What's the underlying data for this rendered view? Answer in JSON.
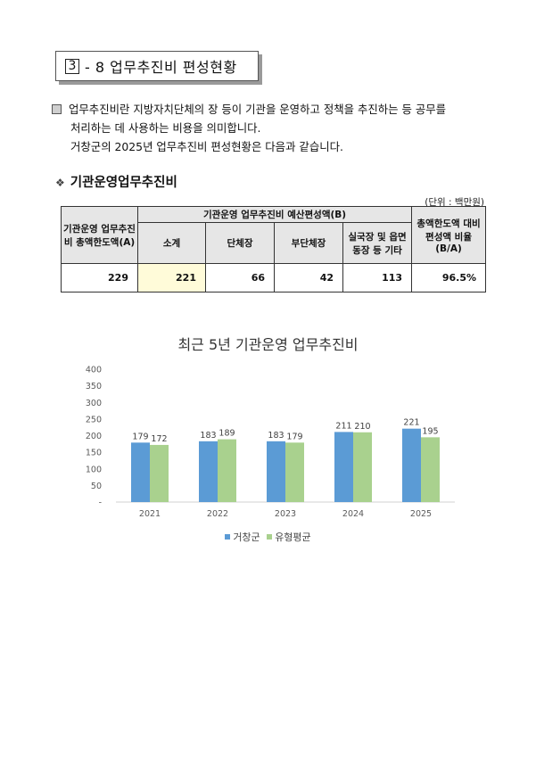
{
  "section": {
    "number": "3",
    "title": "- 8  업무추진비 편성현황"
  },
  "intro": {
    "line1": "업무추진비란 지방자치단체의 장 등이 기관을 운영하고 정책을 추진하는 등 공무를",
    "line2": "처리하는 데 사용하는 비용을 의미합니다.",
    "line3": "거창군의 2025년 업무추진비 편성현황은 다음과 같습니다."
  },
  "subheading": {
    "bullet": "❖",
    "text": "기관운영업무추진비"
  },
  "unit": "(단위 : 백만원)",
  "table": {
    "col_limit": "기관운영 업무추진비 총액한도액(A)",
    "col_group": "기관운영 업무추진비 예산편성액(B)",
    "col_sub": "소계",
    "col_dept": "단체장",
    "col_vice": "부단체장",
    "col_other": "실국장 및 읍면동장 등 기타",
    "col_ratio": "총액한도액 대비 편성액 비율(B/A)",
    "row": {
      "limit": "229",
      "sub": "221",
      "dept": "66",
      "vice": "42",
      "other": "113",
      "ratio": "96.5%"
    }
  },
  "chart_data": {
    "type": "bar",
    "title": "최근 5년 기관운영 업무추진비",
    "categories": [
      "2021",
      "2022",
      "2023",
      "2024",
      "2025"
    ],
    "series": [
      {
        "name": "거창군",
        "values": [
          179,
          183,
          183,
          211,
          221
        ]
      },
      {
        "name": "유형평균",
        "values": [
          172,
          189,
          179,
          210,
          195
        ]
      }
    ],
    "ylim": [
      0,
      400
    ],
    "yticks": [
      "-",
      "50",
      "100",
      "150",
      "200",
      "250",
      "300",
      "350",
      "400"
    ],
    "grid": false,
    "legend": "bottom",
    "colors": [
      "#5b9bd5",
      "#a9d18e"
    ]
  }
}
